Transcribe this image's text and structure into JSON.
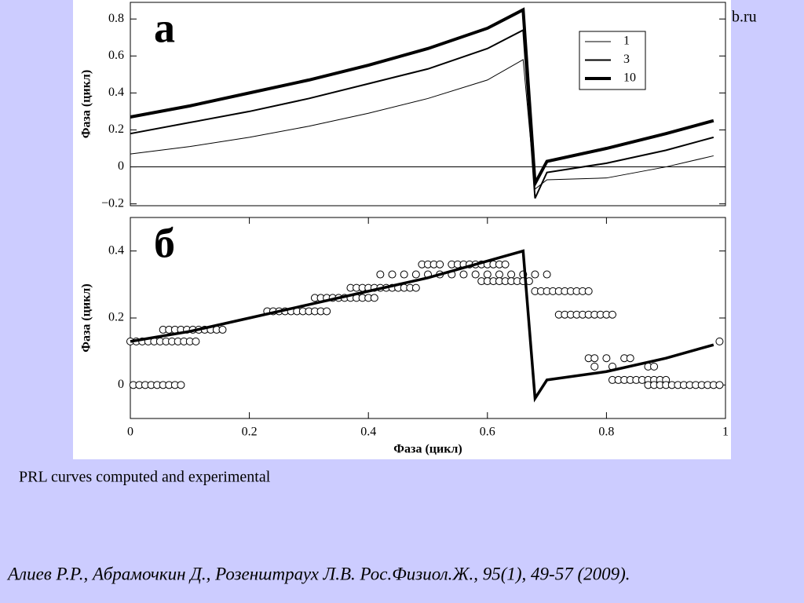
{
  "watermark": "b.ru",
  "caption": "PRL curves computed and experimental",
  "citation": "Алиев Р.Р., Абрамочкин Д., Розенштраух Л.В. Рос.Физиол.Ж., 95(1), 49-57 (2009).",
  "chart_data": [
    {
      "type": "line",
      "panel_label": "а",
      "ylabel": "Фаза (цикл)",
      "xlim": [
        0,
        1
      ],
      "ylim": [
        -0.21,
        0.89
      ],
      "yticks": [
        {
          "value": -0.2,
          "label": "−0.2"
        },
        0,
        0.2,
        0.4,
        0.6,
        0.8
      ],
      "zero_line": true,
      "legend": "upper right",
      "x": [
        0,
        0.1,
        0.2,
        0.3,
        0.4,
        0.5,
        0.6,
        0.66,
        0.68,
        0.7,
        0.8,
        0.9,
        0.98
      ],
      "series": [
        {
          "name": "1",
          "color": "#000000",
          "width": 1,
          "values": [
            0.07,
            0.11,
            0.16,
            0.22,
            0.29,
            0.37,
            0.47,
            0.58,
            -0.12,
            -0.07,
            -0.06,
            0.0,
            0.06
          ]
        },
        {
          "name": "3",
          "color": "#000000",
          "width": 2,
          "values": [
            0.18,
            0.24,
            0.3,
            0.37,
            0.45,
            0.53,
            0.64,
            0.74,
            -0.17,
            -0.03,
            0.02,
            0.09,
            0.16
          ]
        },
        {
          "name": "10",
          "color": "#000000",
          "width": 4,
          "values": [
            0.27,
            0.33,
            0.4,
            0.47,
            0.55,
            0.64,
            0.75,
            0.85,
            -0.09,
            0.03,
            0.1,
            0.18,
            0.25
          ]
        }
      ]
    },
    {
      "type": "line",
      "panel_label": "б",
      "ylabel": "Фаза (цикл)",
      "xlabel": "Фаза (цикл)",
      "xlim": [
        0,
        1
      ],
      "ylim": [
        -0.1,
        0.5
      ],
      "yticks": [
        0,
        0.2,
        0.4
      ],
      "xticks": [
        0,
        0.2,
        0.4,
        0.6,
        0.8,
        1
      ],
      "x": [
        0,
        0.1,
        0.2,
        0.3,
        0.4,
        0.5,
        0.6,
        0.66,
        0.68,
        0.7,
        0.8,
        0.9,
        0.98
      ],
      "series": [
        {
          "color": "#000000",
          "width": 3.5,
          "values": [
            0.13,
            0.16,
            0.2,
            0.24,
            0.28,
            0.32,
            0.37,
            0.4,
            -0.04,
            0.015,
            0.04,
            0.08,
            0.12
          ]
        }
      ],
      "points": [
        [
          0.005,
          0
        ],
        [
          0.015,
          0
        ],
        [
          0.025,
          0
        ],
        [
          0.035,
          0
        ],
        [
          0.045,
          0
        ],
        [
          0.055,
          0
        ],
        [
          0.065,
          0
        ],
        [
          0.075,
          0
        ],
        [
          0.085,
          0
        ],
        [
          0,
          0.13
        ],
        [
          0.01,
          0.13
        ],
        [
          0.02,
          0.13
        ],
        [
          0.03,
          0.13
        ],
        [
          0.04,
          0.13
        ],
        [
          0.05,
          0.13
        ],
        [
          0.06,
          0.13
        ],
        [
          0.07,
          0.13
        ],
        [
          0.08,
          0.13
        ],
        [
          0.09,
          0.13
        ],
        [
          0.1,
          0.13
        ],
        [
          0.11,
          0.13
        ],
        [
          0.055,
          0.165
        ],
        [
          0.065,
          0.165
        ],
        [
          0.075,
          0.165
        ],
        [
          0.085,
          0.165
        ],
        [
          0.095,
          0.165
        ],
        [
          0.105,
          0.165
        ],
        [
          0.115,
          0.165
        ],
        [
          0.125,
          0.165
        ],
        [
          0.135,
          0.165
        ],
        [
          0.145,
          0.165
        ],
        [
          0.155,
          0.165
        ],
        [
          0.23,
          0.22
        ],
        [
          0.24,
          0.22
        ],
        [
          0.25,
          0.22
        ],
        [
          0.26,
          0.22
        ],
        [
          0.27,
          0.22
        ],
        [
          0.28,
          0.22
        ],
        [
          0.29,
          0.22
        ],
        [
          0.3,
          0.22
        ],
        [
          0.31,
          0.22
        ],
        [
          0.32,
          0.22
        ],
        [
          0.33,
          0.22
        ],
        [
          0.31,
          0.26
        ],
        [
          0.32,
          0.26
        ],
        [
          0.33,
          0.26
        ],
        [
          0.34,
          0.26
        ],
        [
          0.35,
          0.26
        ],
        [
          0.36,
          0.26
        ],
        [
          0.37,
          0.26
        ],
        [
          0.38,
          0.26
        ],
        [
          0.39,
          0.26
        ],
        [
          0.4,
          0.26
        ],
        [
          0.41,
          0.26
        ],
        [
          0.37,
          0.29
        ],
        [
          0.38,
          0.29
        ],
        [
          0.39,
          0.29
        ],
        [
          0.4,
          0.29
        ],
        [
          0.41,
          0.29
        ],
        [
          0.42,
          0.29
        ],
        [
          0.43,
          0.29
        ],
        [
          0.44,
          0.29
        ],
        [
          0.45,
          0.29
        ],
        [
          0.46,
          0.29
        ],
        [
          0.47,
          0.29
        ],
        [
          0.48,
          0.29
        ],
        [
          0.42,
          0.33
        ],
        [
          0.44,
          0.33
        ],
        [
          0.46,
          0.33
        ],
        [
          0.48,
          0.33
        ],
        [
          0.5,
          0.33
        ],
        [
          0.52,
          0.33
        ],
        [
          0.54,
          0.33
        ],
        [
          0.56,
          0.33
        ],
        [
          0.58,
          0.33
        ],
        [
          0.6,
          0.33
        ],
        [
          0.62,
          0.33
        ],
        [
          0.64,
          0.33
        ],
        [
          0.66,
          0.33
        ],
        [
          0.68,
          0.33
        ],
        [
          0.7,
          0.33
        ],
        [
          0.49,
          0.36
        ],
        [
          0.5,
          0.36
        ],
        [
          0.51,
          0.36
        ],
        [
          0.52,
          0.36
        ],
        [
          0.54,
          0.36
        ],
        [
          0.55,
          0.36
        ],
        [
          0.56,
          0.36
        ],
        [
          0.57,
          0.36
        ],
        [
          0.58,
          0.36
        ],
        [
          0.59,
          0.36
        ],
        [
          0.6,
          0.36
        ],
        [
          0.61,
          0.36
        ],
        [
          0.62,
          0.36
        ],
        [
          0.63,
          0.36
        ],
        [
          0.59,
          0.31
        ],
        [
          0.6,
          0.31
        ],
        [
          0.61,
          0.31
        ],
        [
          0.62,
          0.31
        ],
        [
          0.63,
          0.31
        ],
        [
          0.64,
          0.31
        ],
        [
          0.65,
          0.31
        ],
        [
          0.66,
          0.31
        ],
        [
          0.67,
          0.31
        ],
        [
          0.68,
          0.28
        ],
        [
          0.69,
          0.28
        ],
        [
          0.7,
          0.28
        ],
        [
          0.71,
          0.28
        ],
        [
          0.72,
          0.28
        ],
        [
          0.73,
          0.28
        ],
        [
          0.74,
          0.28
        ],
        [
          0.75,
          0.28
        ],
        [
          0.76,
          0.28
        ],
        [
          0.77,
          0.28
        ],
        [
          0.72,
          0.21
        ],
        [
          0.73,
          0.21
        ],
        [
          0.74,
          0.21
        ],
        [
          0.75,
          0.21
        ],
        [
          0.76,
          0.21
        ],
        [
          0.77,
          0.21
        ],
        [
          0.78,
          0.21
        ],
        [
          0.79,
          0.21
        ],
        [
          0.8,
          0.21
        ],
        [
          0.81,
          0.21
        ],
        [
          0.77,
          0.08
        ],
        [
          0.78,
          0.08
        ],
        [
          0.8,
          0.08
        ],
        [
          0.83,
          0.08
        ],
        [
          0.84,
          0.08
        ],
        [
          0.78,
          0.055
        ],
        [
          0.81,
          0.055
        ],
        [
          0.87,
          0.055
        ],
        [
          0.88,
          0.055
        ],
        [
          0.81,
          0.015
        ],
        [
          0.82,
          0.015
        ],
        [
          0.83,
          0.015
        ],
        [
          0.84,
          0.015
        ],
        [
          0.85,
          0.015
        ],
        [
          0.86,
          0.015
        ],
        [
          0.87,
          0.015
        ],
        [
          0.88,
          0.015
        ],
        [
          0.89,
          0.015
        ],
        [
          0.9,
          0.015
        ],
        [
          0.87,
          0
        ],
        [
          0.88,
          0
        ],
        [
          0.89,
          0
        ],
        [
          0.9,
          0
        ],
        [
          0.91,
          0
        ],
        [
          0.92,
          0
        ],
        [
          0.93,
          0
        ],
        [
          0.94,
          0
        ],
        [
          0.95,
          0
        ],
        [
          0.96,
          0
        ],
        [
          0.97,
          0
        ],
        [
          0.98,
          0
        ],
        [
          0.99,
          0
        ],
        [
          0.99,
          0.13
        ]
      ]
    }
  ]
}
